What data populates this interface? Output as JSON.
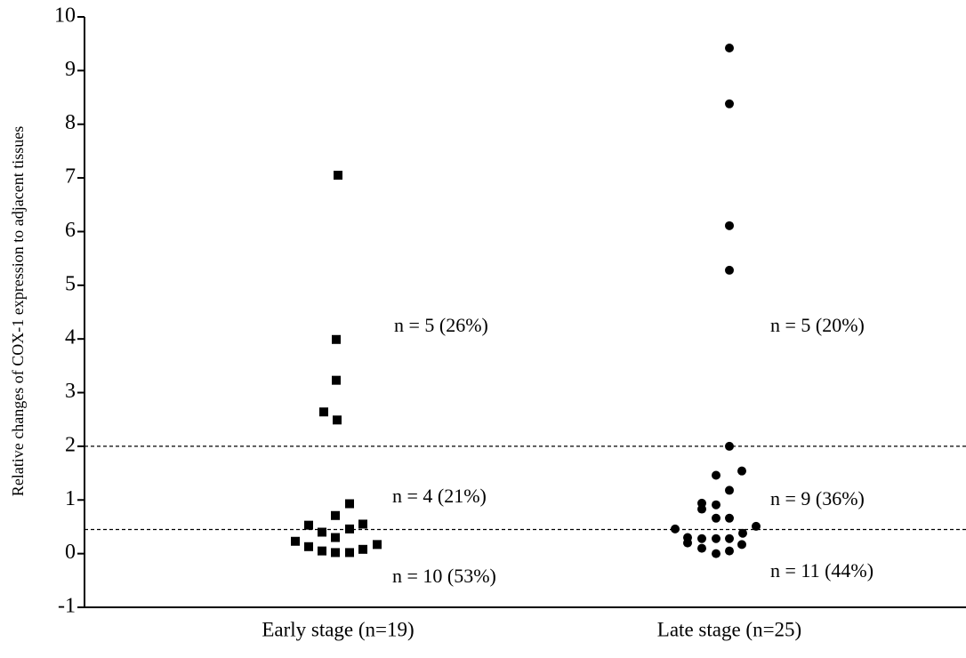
{
  "chart_data": {
    "type": "strip",
    "y_label": "Relative changes of COX-1 expression to adjacent tissues",
    "categories": [
      "Early stage (n=19)",
      "Late stage (n=25)"
    ],
    "series": [
      {
        "marker": "square",
        "color": "#000000",
        "values": [
          7.05,
          3.99,
          3.23,
          2.64,
          2.49,
          0.93,
          0.71,
          0.53,
          0.55,
          0.4,
          0.46,
          0.3,
          0.23,
          0.13,
          0.17,
          0.08,
          0.05,
          0.02,
          0.02
        ]
      },
      {
        "marker": "circle",
        "color": "#000000",
        "values": [
          9.42,
          8.38,
          6.11,
          5.28,
          2.0,
          1.54,
          1.46,
          1.18,
          0.94,
          0.91,
          0.83,
          0.66,
          0.66,
          0.46,
          0.51,
          0.3,
          0.28,
          0.28,
          0.28,
          0.2,
          0.17,
          0.1,
          0.05,
          0.0,
          0.38
        ]
      }
    ],
    "reference_lines": [
      2,
      0.45
    ],
    "annotations": [
      "n = 5 (26%)",
      "n = 4 (21%)",
      "n = 10 (53%)",
      "n = 5 (20%)",
      "n = 9 (36%)",
      "n = 11 (44%)"
    ],
    "ylim": [
      -1,
      10
    ],
    "yticks": [
      -1,
      0,
      1,
      2,
      3,
      4,
      5,
      6,
      7,
      8,
      9,
      10
    ]
  }
}
